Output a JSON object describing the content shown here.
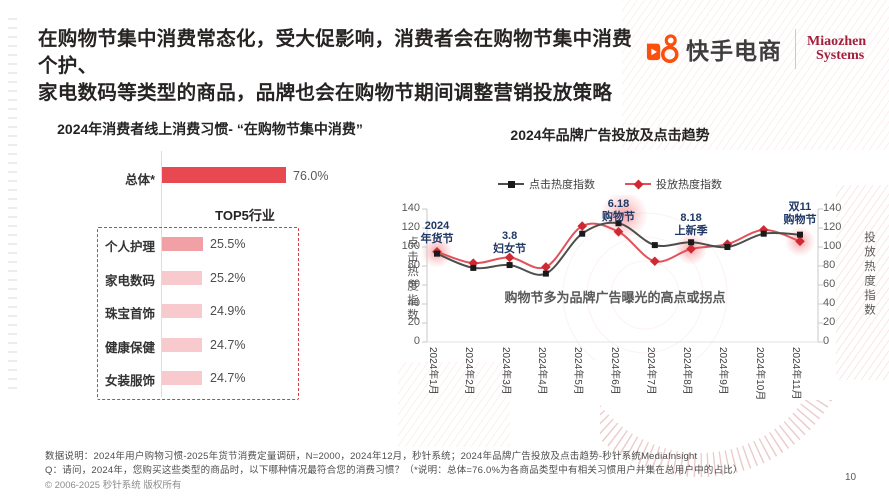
{
  "page": {
    "number": "10",
    "copyright": "© 2006-2025 秒针系统 版权所有"
  },
  "header": {
    "title_line1": "在购物节集中消费常态化，受大促影响，消费者会在购物节集中消费个护、",
    "title_line2": "家电数码等类型的商品，品牌也会在购物节期间调整营销投放策略",
    "kuaishou_label": "快手电商",
    "miaozhen_line1": "Miaozhen",
    "miaozhen_line2": "Systems"
  },
  "left_chart": {
    "title": "2024年消费者线上消费习惯- “在购物节集中消费”"
  },
  "right_chart": {
    "title": "2024年品牌广告投放及点击趋势",
    "note": "购物节多为品牌广告曝光的高点或拐点"
  },
  "chart_data": [
    {
      "type": "bar",
      "title": "2024年消费者线上消费习惯-“在购物节集中消费”",
      "categories": [
        "总体*",
        "个人护理",
        "家电数码",
        "珠宝首饰",
        "健康保健",
        "女装服饰"
      ],
      "values": [
        76.0,
        25.5,
        25.2,
        24.9,
        24.7,
        24.7
      ],
      "unit": "%",
      "group_label": "TOP5行业",
      "xlabel": "",
      "ylabel": ""
    },
    {
      "type": "line",
      "title": "2024年品牌广告投放及点击趋势",
      "categories": [
        "2024年1月",
        "2024年2月",
        "2024年3月",
        "2024年4月",
        "2024年5月",
        "2024年6月",
        "2024年7月",
        "2024年8月",
        "2024年9月",
        "2024年10月",
        "2024年11月"
      ],
      "series": [
        {
          "name": "点击热度指数",
          "marker": "square",
          "color": "#4D4D4D",
          "values": [
            93,
            78,
            81,
            72,
            114,
            125,
            102,
            105,
            100,
            114,
            113
          ]
        },
        {
          "name": "投放热度指数",
          "marker": "diamond",
          "color": "#E2525A",
          "values": [
            95,
            83,
            89,
            79,
            122,
            116,
            85,
            98,
            103,
            118,
            106
          ]
        }
      ],
      "ylim": [
        0,
        140
      ],
      "yticks": [
        0,
        20,
        40,
        60,
        80,
        100,
        120,
        140
      ],
      "legend_position": "top",
      "grid": false,
      "annotations": [
        {
          "text": "2024\n年货节",
          "month_index": 0
        },
        {
          "text": "3.8\n妇女节",
          "month_index": 2
        },
        {
          "text": "6.18\n购物节",
          "month_index": 5
        },
        {
          "text": "8.18\n上新季",
          "month_index": 7
        },
        {
          "text": "双11\n购物节",
          "month_index": 10
        }
      ],
      "note": "购物节多为品牌广告曝光的高点或拐点"
    }
  ],
  "footer": {
    "line1": "数据说明：2024年用户购物习惯-2025年货节消费定量调研，N=2000，2024年12月，秒针系统；2024年品牌广告投放及点击趋势-秒针系统MediaInsight",
    "line2": "Q：请问，2024年，您购买这些类型的商品时，以下哪种情况最符合您的消费习惯？（*说明：总体=76.0%为各商品类型中有相关习惯用户并集在总用户中的占比）"
  },
  "colors": {
    "accent_red": "#E84850",
    "bar_pink_dark": "#F1A0A6",
    "bar_pink_light": "#F8C9CD",
    "dashed_border": "#D04147",
    "annotation_navy": "#1F3864",
    "series_click": "#4D4D4D",
    "series_click_marker": "#1A1A1A",
    "series_spend": "#E2525A",
    "series_spend_marker": "#CF2A33",
    "kuaishou_orange": "#FB4F0C",
    "miaozhen_red": "#A31E39"
  }
}
